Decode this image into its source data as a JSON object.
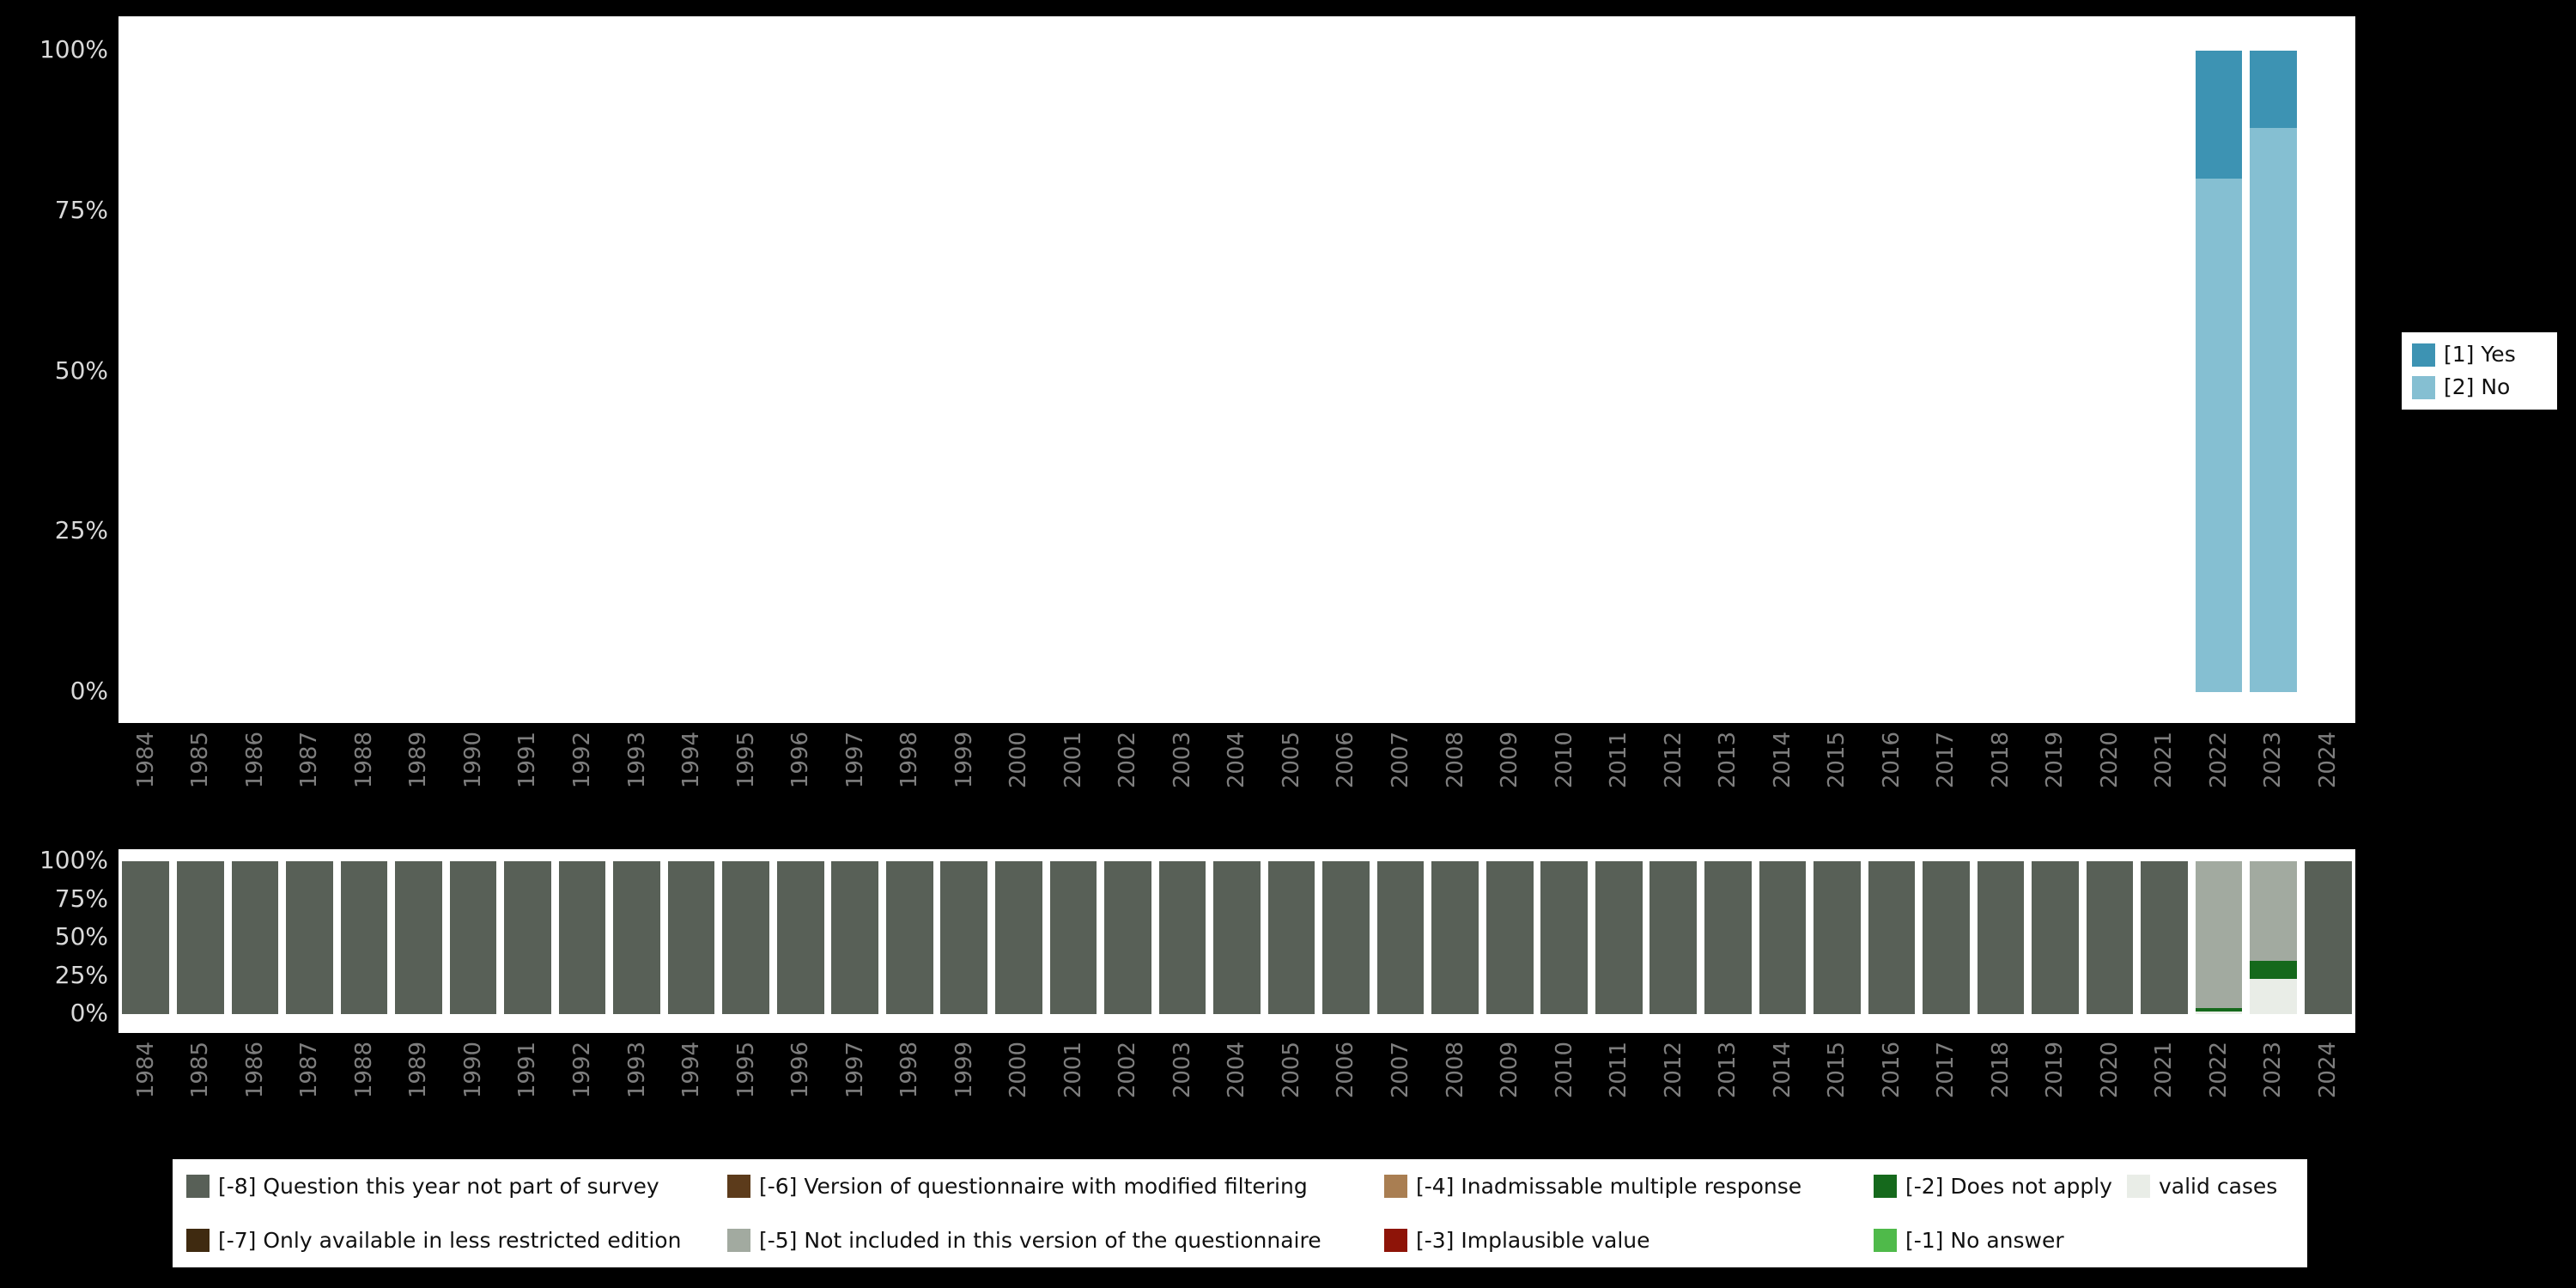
{
  "accent_colors": {
    "background": "#000000",
    "panel": "#ffffff",
    "axis_text_light": "#d9d9d9",
    "axis_text_dark": "#7e7e7e"
  },
  "chart_data": [
    {
      "id": "valid-values",
      "type": "bar",
      "stacked": true,
      "title": "",
      "xlabel": "",
      "ylabel": "",
      "ylim": [
        0,
        100
      ],
      "grid": false,
      "y_ticks": [
        "100%",
        "75%",
        "50%",
        "25%",
        "0%"
      ],
      "categories": [
        "1984",
        "1985",
        "1986",
        "1987",
        "1988",
        "1989",
        "1990",
        "1991",
        "1992",
        "1993",
        "1994",
        "1995",
        "1996",
        "1997",
        "1998",
        "1999",
        "2000",
        "2001",
        "2002",
        "2003",
        "2004",
        "2005",
        "2006",
        "2007",
        "2008",
        "2009",
        "2010",
        "2011",
        "2012",
        "2013",
        "2014",
        "2015",
        "2016",
        "2017",
        "2018",
        "2019",
        "2020",
        "2021",
        "2022",
        "2023",
        "2024"
      ],
      "series": [
        {
          "name": "[1] Yes",
          "color": "#3d93b3",
          "values_by_year": {
            "2022": 20,
            "2023": 12
          }
        },
        {
          "name": "[2] No",
          "color": "#85bfd2",
          "values_by_year": {
            "2022": 80,
            "2023": 88
          }
        }
      ],
      "legend": {
        "position": "right",
        "items": [
          "[1] Yes",
          "[2] No"
        ]
      }
    },
    {
      "id": "missing-values",
      "type": "bar",
      "stacked": true,
      "title": "",
      "xlabel": "",
      "ylabel": "",
      "ylim": [
        0,
        100
      ],
      "grid": false,
      "y_ticks": [
        "100%",
        "75%",
        "50%",
        "25%",
        "0%"
      ],
      "categories": [
        "1984",
        "1985",
        "1986",
        "1987",
        "1988",
        "1989",
        "1990",
        "1991",
        "1992",
        "1993",
        "1994",
        "1995",
        "1996",
        "1997",
        "1998",
        "1999",
        "2000",
        "2001",
        "2002",
        "2003",
        "2004",
        "2005",
        "2006",
        "2007",
        "2008",
        "2009",
        "2010",
        "2011",
        "2012",
        "2013",
        "2014",
        "2015",
        "2016",
        "2017",
        "2018",
        "2019",
        "2020",
        "2021",
        "2022",
        "2023",
        "2024"
      ],
      "codes": [
        {
          "label": "[-8] Question this year not part of survey",
          "color": "#586057"
        },
        {
          "label": "[-7] Only available in less restricted edition",
          "color": "#3f2a10"
        },
        {
          "label": "[-6] Version of questionnaire with modified filtering",
          "color": "#5c3b1b"
        },
        {
          "label": "[-5] Not included in this version of the questionnaire",
          "color": "#a2aaa0"
        },
        {
          "label": "[-4] Inadmissable multiple response",
          "color": "#a97e52"
        },
        {
          "label": "[-3] Implausible value",
          "color": "#8e1408"
        },
        {
          "label": "[-2] Does not apply",
          "color": "#15691c"
        },
        {
          "label": "[-1] No answer",
          "color": "#4fba4a"
        },
        {
          "label": "valid cases",
          "color": "#e9ede7"
        }
      ],
      "default_stack": [
        {
          "code": "[-8] Question this year not part of survey",
          "value": 100
        }
      ],
      "stacks_by_year": {
        "2022": [
          {
            "code": "[-5] Not included in this version of the questionnaire",
            "value": 96
          },
          {
            "code": "[-2] Does not apply",
            "value": 2.5
          },
          {
            "code": "valid cases",
            "value": 1.5
          }
        ],
        "2023": [
          {
            "code": "[-5] Not included in this version of the questionnaire",
            "value": 65
          },
          {
            "code": "[-2] Does not apply",
            "value": 12
          },
          {
            "code": "valid cases",
            "value": 23
          }
        ]
      },
      "legend": {
        "position": "bottom",
        "rows": 2,
        "flow": "column"
      }
    }
  ]
}
